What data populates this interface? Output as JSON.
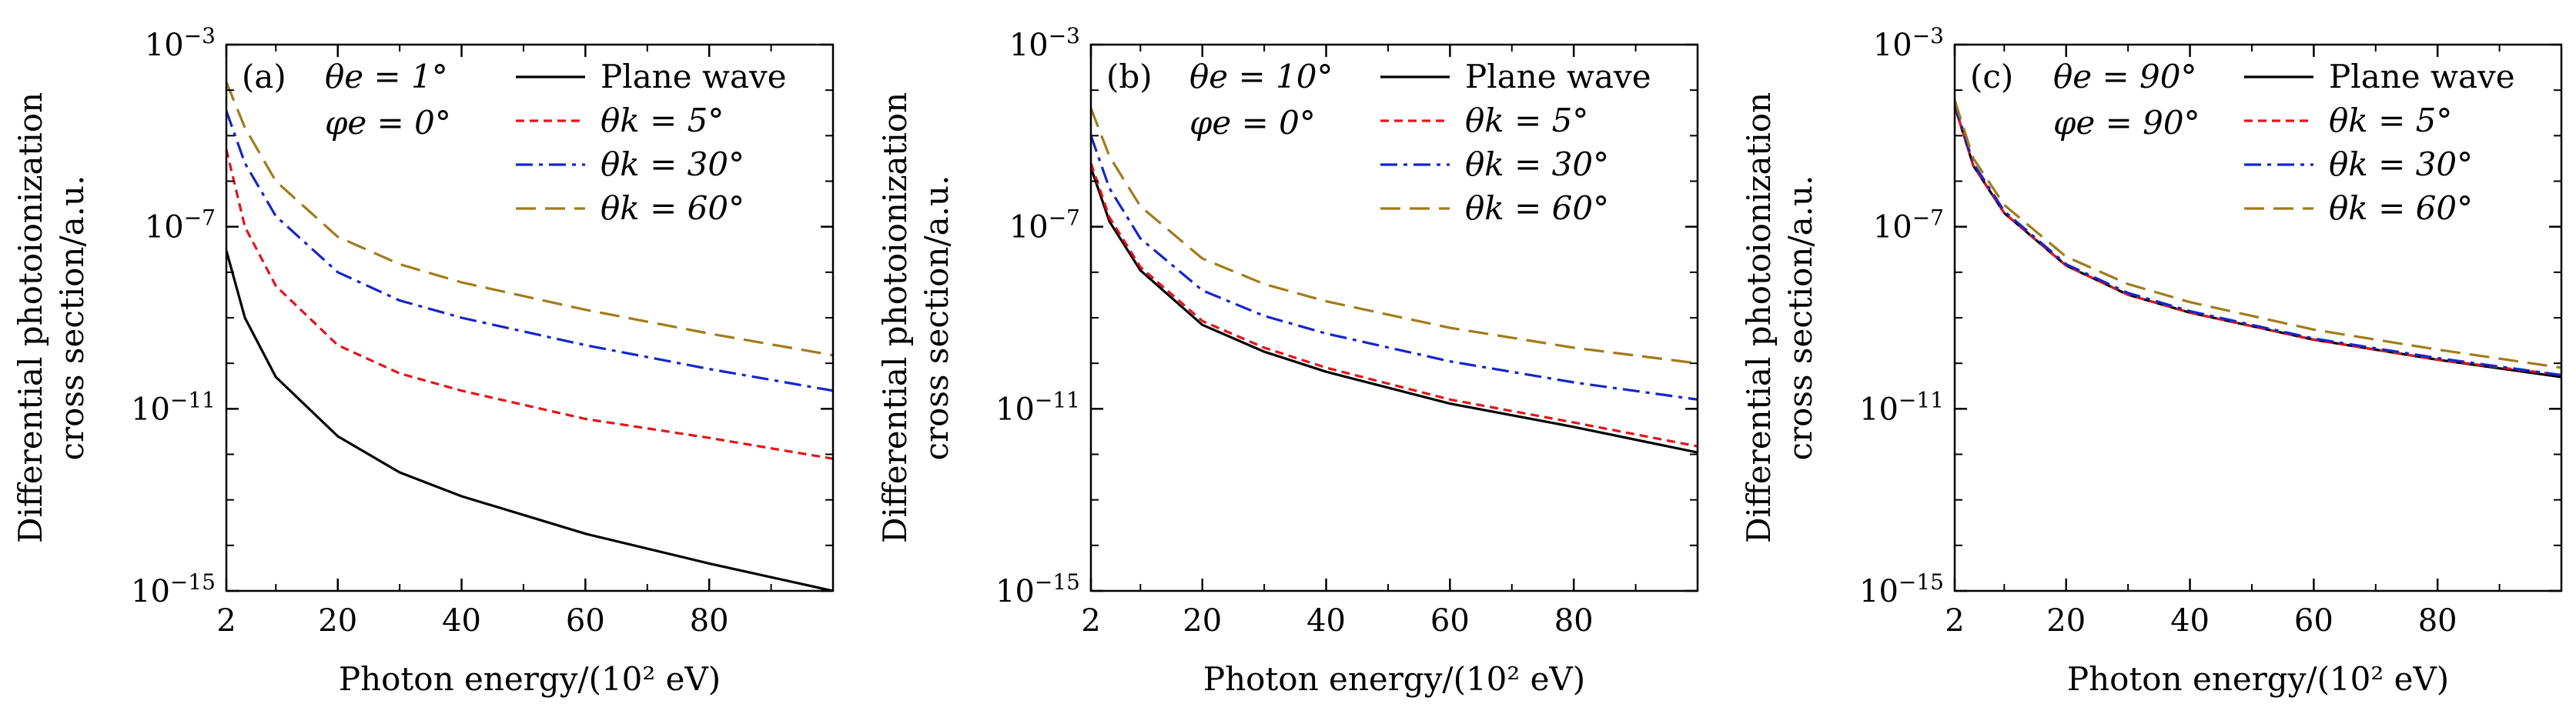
{
  "x_axis_label": "Photon energy/(10² eV)",
  "y_axis_label_line1": "Differential photoionization",
  "y_axis_label_line2": "cross section/a.u.",
  "x_ticks": [
    "2",
    "20",
    "40",
    "60",
    "80"
  ],
  "y_ticks": [
    {
      "base": "10",
      "exp": "−3"
    },
    {
      "base": "10",
      "exp": "−7"
    },
    {
      "base": "10",
      "exp": "−11"
    },
    {
      "base": "10",
      "exp": "−15"
    }
  ],
  "legend_labels": [
    "Plane wave",
    "θk = 5°",
    "θk = 30°",
    "θk = 60°"
  ],
  "colors": {
    "plane": "#000000",
    "k5": "#e4131b",
    "k30": "#1526c9",
    "k60": "#a07b1b"
  },
  "chart_data": [
    {
      "type": "line",
      "panel_label": "(a)",
      "annotation_line1": "θe = 1°",
      "annotation_line2": "φe = 0°",
      "xlabel": "Photon energy/(10² eV)",
      "ylabel": "Differential photoionization cross section/a.u.",
      "y_scale": "log",
      "xlim": [
        2,
        100
      ],
      "ylim": [
        1e-15,
        0.001
      ],
      "x": [
        2,
        5,
        10,
        20,
        30,
        40,
        60,
        80,
        100
      ],
      "series": [
        {
          "name": "Plane wave",
          "style": "solid",
          "values": [
            3e-08,
            1e-09,
            5e-11,
            2.5e-12,
            4e-13,
            1.2e-13,
            1.8e-14,
            4e-15,
            1e-15
          ]
        },
        {
          "name": "θk = 5°",
          "style": "dashed",
          "values": [
            5e-06,
            1e-07,
            5e-09,
            2.5e-10,
            6e-11,
            2.5e-11,
            6e-12,
            2.3e-12,
            8e-13
          ]
        },
        {
          "name": "θk = 30°",
          "style": "dashdot",
          "values": [
            3.5e-05,
            2.5e-06,
            1.7e-07,
            1e-08,
            2.4e-09,
            1e-09,
            2.5e-10,
            7.5e-11,
            2.5e-11
          ]
        },
        {
          "name": "θk = 60°",
          "style": "longdash",
          "values": [
            0.00015,
            1.5e-05,
            1e-06,
            6e-08,
            1.5e-08,
            6e-09,
            1.5e-09,
            4.5e-10,
            1.5e-10
          ]
        }
      ]
    },
    {
      "type": "line",
      "panel_label": "(b)",
      "annotation_line1": "θe = 10°",
      "annotation_line2": "φe = 0°",
      "xlabel": "Photon energy/(10² eV)",
      "ylabel": "Differential photoionization cross section/a.u.",
      "y_scale": "log",
      "xlim": [
        2,
        100
      ],
      "ylim": [
        1e-15,
        0.001
      ],
      "x": [
        2,
        5,
        10,
        20,
        30,
        40,
        60,
        80,
        100
      ],
      "series": [
        {
          "name": "Plane wave",
          "style": "solid",
          "values": [
            2e-06,
            1.3e-07,
            1.1e-08,
            7e-10,
            1.8e-10,
            6.5e-11,
            1.3e-11,
            4e-12,
            1.1e-12
          ]
        },
        {
          "name": "θk = 5°",
          "style": "dashed",
          "values": [
            2.5e-06,
            1.6e-07,
            1.3e-08,
            8.5e-10,
            2.2e-10,
            8e-11,
            1.6e-11,
            5e-12,
            1.5e-12
          ]
        },
        {
          "name": "θk = 30°",
          "style": "dashdot",
          "values": [
            1e-05,
            7e-07,
            5.5e-08,
            4e-09,
            1.1e-09,
            4.5e-10,
            1.1e-10,
            3.8e-11,
            1.6e-11
          ]
        },
        {
          "name": "θk = 60°",
          "style": "longdash",
          "values": [
            4e-05,
            3.5e-06,
            2.8e-07,
            2e-08,
            5.5e-09,
            2.3e-09,
            6e-10,
            2.2e-10,
            1e-10
          ]
        }
      ]
    },
    {
      "type": "line",
      "panel_label": "(c)",
      "annotation_line1": "θe = 90°",
      "annotation_line2": "φe = 90°",
      "xlabel": "Photon energy/(10² eV)",
      "ylabel": "Differential photoionization cross section/a.u.",
      "y_scale": "log",
      "xlim": [
        2,
        100
      ],
      "ylim": [
        1e-15,
        0.001
      ],
      "x": [
        2,
        5,
        10,
        20,
        30,
        40,
        60,
        80,
        100
      ],
      "series": [
        {
          "name": "Plane wave",
          "style": "solid",
          "values": [
            4.5e-05,
            2.2e-06,
            2e-07,
            1.4e-08,
            3.2e-09,
            1.3e-09,
            3.3e-10,
            1.2e-10,
            5e-11
          ]
        },
        {
          "name": "θk = 5°",
          "style": "dashed",
          "values": [
            4.5e-05,
            2.2e-06,
            2e-07,
            1.4e-08,
            3.2e-09,
            1.3e-09,
            3.3e-10,
            1.2e-10,
            5.5e-11
          ]
        },
        {
          "name": "θk = 30°",
          "style": "dashdot",
          "values": [
            5e-05,
            2.5e-06,
            2.2e-07,
            1.5e-08,
            3.5e-09,
            1.4e-09,
            3.5e-10,
            1.3e-10,
            5.5e-11
          ]
        },
        {
          "name": "θk = 60°",
          "style": "longdash",
          "values": [
            6e-05,
            3.2e-06,
            3e-07,
            2.2e-08,
            5.5e-09,
            2.2e-09,
            5.5e-10,
            2e-10,
            8e-11
          ]
        }
      ]
    }
  ]
}
